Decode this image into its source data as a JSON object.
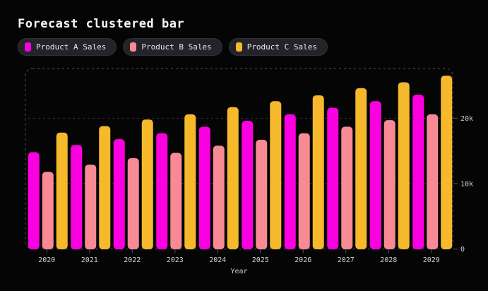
{
  "chart": {
    "title": "Forecast clustered bar",
    "background": "#050505",
    "title_color": "#f7f7f7",
    "axis_text_color": "#cfcfcf",
    "border_color": "#3a3a3f",
    "grid_color": "#333338",
    "tick_color": "#55555a",
    "legend_pill_bg": "#232329"
  },
  "chart_data": {
    "type": "bar",
    "title": "Forecast clustered bar",
    "xlabel": "Year",
    "ylabel": "",
    "categories": [
      "2020",
      "2021",
      "2022",
      "2023",
      "2024",
      "2025",
      "2026",
      "2027",
      "2028",
      "2029"
    ],
    "series": [
      {
        "name": "Product A Sales",
        "color": "#fa00e1",
        "values": [
          14800,
          15900,
          16800,
          17700,
          18700,
          19600,
          20600,
          21600,
          22600,
          23600
        ]
      },
      {
        "name": "Product B Sales",
        "color": "#f88a96",
        "values": [
          11800,
          12900,
          13900,
          14700,
          15800,
          16700,
          17700,
          18700,
          19700,
          20600
        ]
      },
      {
        "name": "Product C Sales",
        "color": "#f6b92c",
        "values": [
          17800,
          18800,
          19800,
          20600,
          21700,
          22600,
          23500,
          24600,
          25500,
          26500
        ]
      }
    ],
    "ylim": [
      0,
      27600
    ],
    "yticks": [
      {
        "value": 0,
        "label": "0"
      },
      {
        "value": 10000,
        "label": "10k"
      },
      {
        "value": 20000,
        "label": "20k"
      }
    ],
    "grid": true,
    "legend_position": "top-left",
    "y_axis_side": "right"
  }
}
